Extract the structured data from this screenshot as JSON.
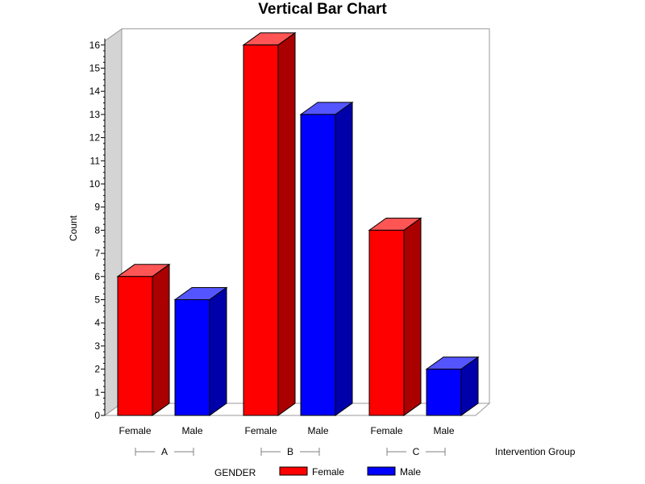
{
  "chart_data": {
    "type": "bar",
    "title": "Vertical Bar Chart",
    "ylabel": "Count",
    "group_axis_label": "Intervention Group",
    "ylim": [
      0,
      16
    ],
    "y_ticks": [
      "0",
      "1",
      "2",
      "3",
      "4",
      "5",
      "6",
      "7",
      "8",
      "9",
      "10",
      "11",
      "12",
      "13",
      "14",
      "15",
      "16"
    ],
    "groups": [
      "A",
      "B",
      "C"
    ],
    "subgroups": [
      "Female",
      "Male"
    ],
    "series": [
      {
        "name": "Female",
        "values": [
          6,
          16,
          8
        ]
      },
      {
        "name": "Male",
        "values": [
          5,
          13,
          2
        ]
      }
    ],
    "legend": {
      "title": "GENDER",
      "position": "bottom",
      "entries": [
        "Female",
        "Male"
      ]
    },
    "colors": {
      "Female": {
        "front": "#ff0000",
        "top": "#ff5555",
        "side": "#aa0000"
      },
      "Male": {
        "front": "#0000ff",
        "top": "#5555ff",
        "side": "#0000aa"
      }
    },
    "style": "3d-bars",
    "grid": false
  }
}
